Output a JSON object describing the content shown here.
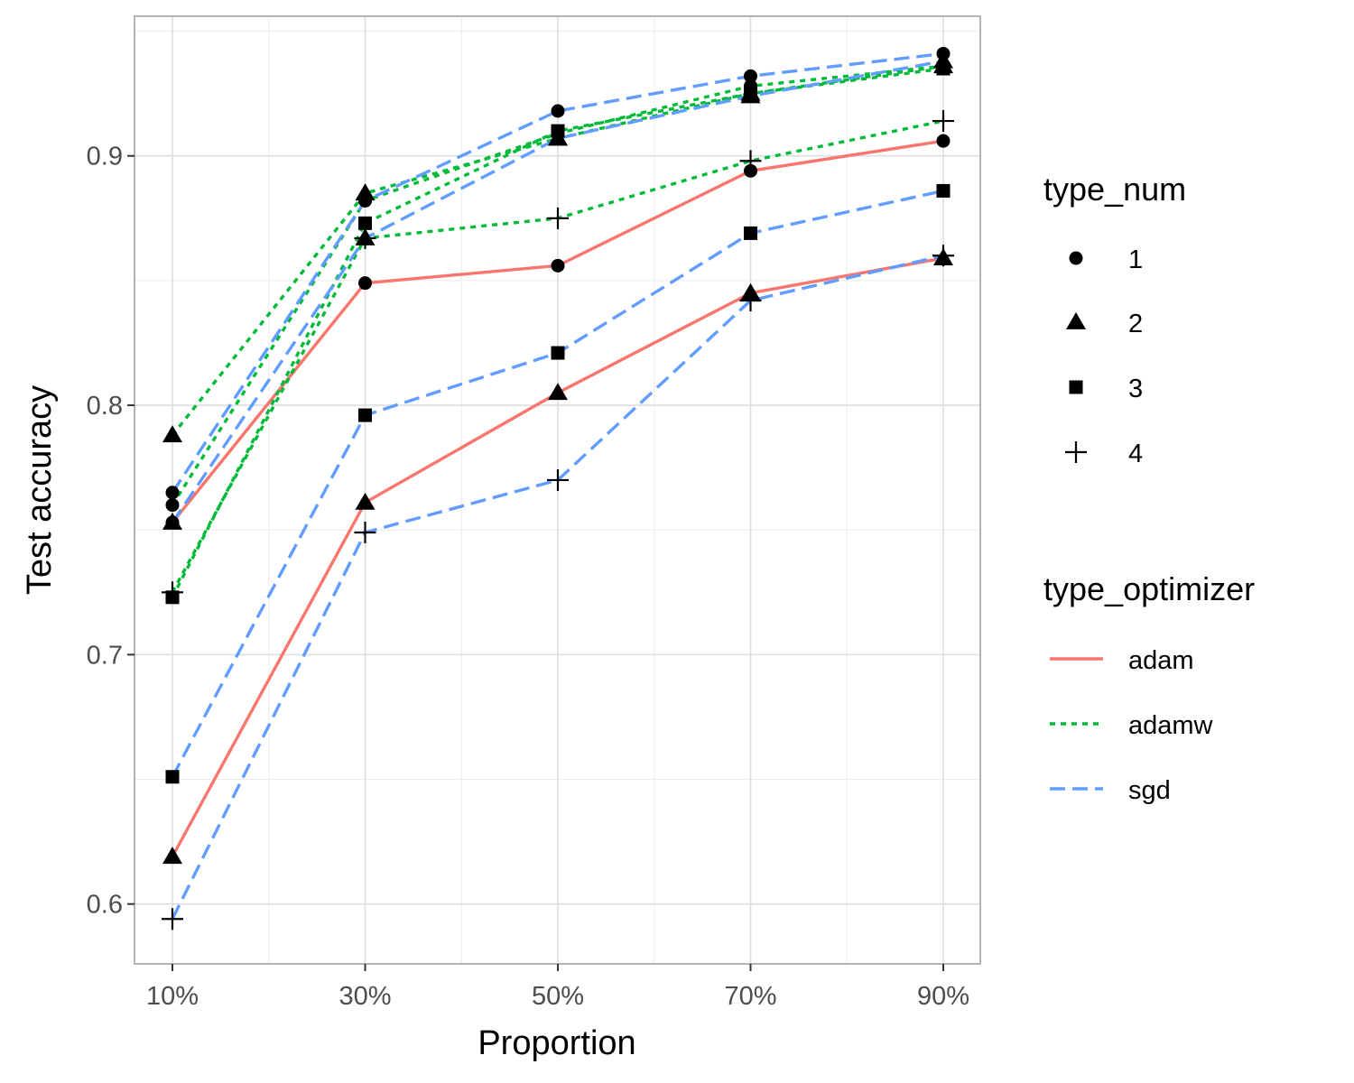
{
  "chart_data": {
    "type": "line",
    "xlabel": "Proportion",
    "ylabel": "Test accuracy",
    "categories": [
      "10%",
      "30%",
      "50%",
      "70%",
      "90%"
    ],
    "ylim": [
      0.576,
      0.956
    ],
    "yticks": [
      0.6,
      0.7,
      0.8,
      0.9
    ],
    "ytick_labels": [
      "0.6",
      "0.7",
      "0.8",
      "0.9"
    ],
    "grid": true,
    "legend_placement": "right",
    "shape_legend": {
      "title": "type_num",
      "items": [
        {
          "label": "1",
          "shape": "circle"
        },
        {
          "label": "2",
          "shape": "triangle"
        },
        {
          "label": "3",
          "shape": "square"
        },
        {
          "label": "4",
          "shape": "plus"
        }
      ]
    },
    "color_legend": {
      "title": "type_optimizer",
      "items": [
        {
          "label": "adam",
          "color": "#F8766D",
          "dash": "solid"
        },
        {
          "label": "adamw",
          "color": "#00BA38",
          "dash": "dotted"
        },
        {
          "label": "sgd",
          "color": "#619CFF",
          "dash": "dashed"
        }
      ]
    },
    "series": [
      {
        "optimizer": "adam",
        "type_num": "1",
        "values": [
          0.753,
          0.849,
          0.856,
          0.894,
          0.906
        ]
      },
      {
        "optimizer": "adam",
        "type_num": "2",
        "values": [
          0.619,
          0.761,
          0.805,
          0.845,
          0.859
        ]
      },
      {
        "optimizer": "adamw",
        "type_num": "1",
        "values": [
          0.76,
          0.882,
          0.909,
          0.928,
          0.936
        ]
      },
      {
        "optimizer": "adamw",
        "type_num": "2",
        "values": [
          0.788,
          0.885,
          0.907,
          0.925,
          0.936
        ]
      },
      {
        "optimizer": "adamw",
        "type_num": "3",
        "values": [
          0.723,
          0.873,
          0.91,
          0.925,
          0.935
        ]
      },
      {
        "optimizer": "adamw",
        "type_num": "4",
        "values": [
          0.725,
          0.867,
          0.875,
          0.898,
          0.914
        ]
      },
      {
        "optimizer": "sgd",
        "type_num": "1",
        "values": [
          0.765,
          0.882,
          0.918,
          0.932,
          0.941
        ]
      },
      {
        "optimizer": "sgd",
        "type_num": "2",
        "values": [
          0.753,
          0.867,
          0.907,
          0.924,
          0.938
        ]
      },
      {
        "optimizer": "sgd",
        "type_num": "3",
        "values": [
          0.651,
          0.796,
          0.821,
          0.869,
          0.886
        ]
      },
      {
        "optimizer": "sgd",
        "type_num": "4",
        "values": [
          0.594,
          0.749,
          0.77,
          0.842,
          0.86
        ]
      }
    ]
  }
}
